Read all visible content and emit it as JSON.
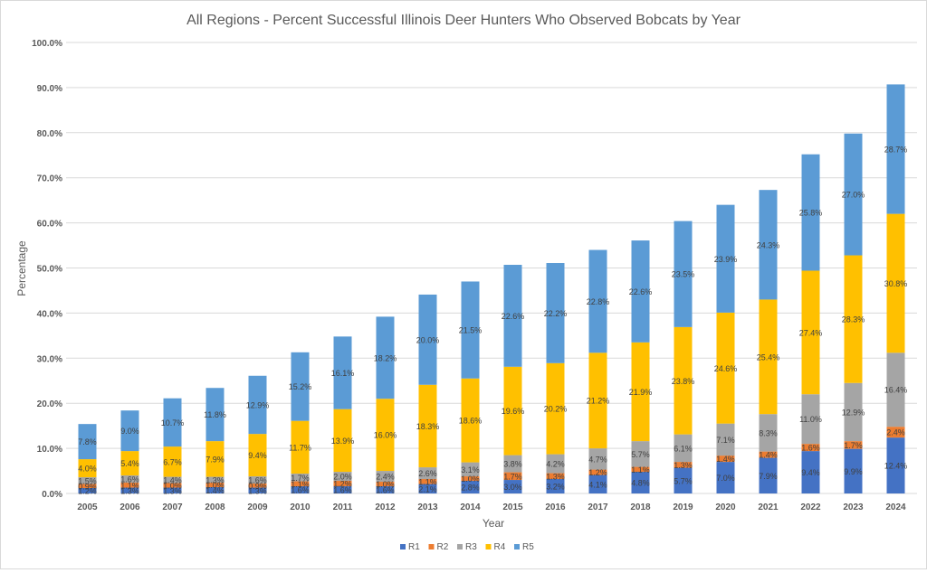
{
  "chart_data": {
    "type": "bar",
    "stacked": true,
    "title": "All Regions - Percent Successful Illinois Deer Hunters Who Observed Bobcats by Year",
    "xlabel": "Year",
    "ylabel": "Percentage",
    "ylim": [
      0,
      100
    ],
    "y_ticks": [
      "0.0%",
      "10.0%",
      "20.0%",
      "30.0%",
      "40.0%",
      "50.0%",
      "60.0%",
      "70.0%",
      "80.0%",
      "90.0%",
      "100.0%"
    ],
    "grid": true,
    "legend_position": "bottom",
    "categories": [
      "2005",
      "2006",
      "2007",
      "2008",
      "2009",
      "2010",
      "2011",
      "2012",
      "2013",
      "2014",
      "2015",
      "2016",
      "2017",
      "2018",
      "2019",
      "2020",
      "2021",
      "2022",
      "2023",
      "2024"
    ],
    "series": [
      {
        "name": "R1",
        "color": "#4472C4",
        "values": [
          1.2,
          1.3,
          1.3,
          1.4,
          1.3,
          1.6,
          1.6,
          1.6,
          2.1,
          2.8,
          3.0,
          3.2,
          4.1,
          4.8,
          5.7,
          7.0,
          7.9,
          9.4,
          9.9,
          12.4
        ]
      },
      {
        "name": "R2",
        "color": "#ED7D31",
        "values": [
          0.9,
          1.1,
          1.0,
          1.0,
          0.9,
          1.1,
          1.2,
          1.0,
          1.1,
          1.0,
          1.7,
          1.3,
          1.2,
          1.1,
          1.3,
          1.4,
          1.4,
          1.6,
          1.7,
          2.4
        ]
      },
      {
        "name": "R3",
        "color": "#A5A5A5",
        "values": [
          1.5,
          1.6,
          1.4,
          1.3,
          1.6,
          1.7,
          2.0,
          2.4,
          2.6,
          3.1,
          3.8,
          4.2,
          4.7,
          5.7,
          6.1,
          7.1,
          8.3,
          11.0,
          12.9,
          16.4
        ]
      },
      {
        "name": "R4",
        "color": "#FFC000",
        "values": [
          4.0,
          5.4,
          6.7,
          7.9,
          9.4,
          11.7,
          13.9,
          16.0,
          18.3,
          18.6,
          19.6,
          20.2,
          21.2,
          21.9,
          23.8,
          24.6,
          25.4,
          27.4,
          28.3,
          30.8
        ]
      },
      {
        "name": "R5",
        "color": "#5B9BD5",
        "values": [
          7.8,
          9.0,
          10.7,
          11.8,
          12.9,
          15.2,
          16.1,
          18.2,
          20.0,
          21.5,
          22.6,
          22.2,
          22.8,
          22.6,
          23.5,
          23.9,
          24.3,
          25.8,
          27.0,
          28.7
        ]
      }
    ]
  }
}
